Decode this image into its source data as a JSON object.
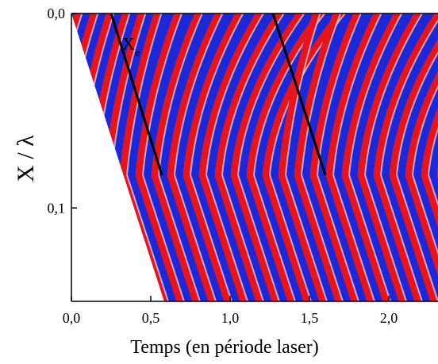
{
  "chart_data": {
    "type": "field-map",
    "xlabel": "Temps (en période laser)",
    "ylabel": "X / λ",
    "xlim": [
      0,
      2.31
    ],
    "ylim": [
      0,
      0.148
    ],
    "y_inverted": true,
    "xticks": [
      {
        "value": 0,
        "label": "0,0"
      },
      {
        "value": 0.5,
        "label": "0,5"
      },
      {
        "value": 1,
        "label": "1,0"
      },
      {
        "value": 1.5,
        "label": "1,5"
      },
      {
        "value": 2,
        "label": "2,0"
      }
    ],
    "yticks": [
      {
        "value": 0,
        "label": "0,0"
      },
      {
        "value": 0.1,
        "label": "0,1"
      }
    ],
    "annotation": {
      "text": "X",
      "subscript": "e",
      "x": 0.32,
      "y": 0.012
    },
    "trajectories": [
      {
        "color": "#000000",
        "x": [
          0.25,
          0.57
        ],
        "y": [
          0,
          0.083
        ]
      },
      {
        "color": "#000000",
        "x": [
          1.27,
          1.6
        ],
        "y": [
          0,
          0.083
        ]
      }
    ],
    "colors": [
      "#e8141c",
      "#1c28d8"
    ]
  }
}
